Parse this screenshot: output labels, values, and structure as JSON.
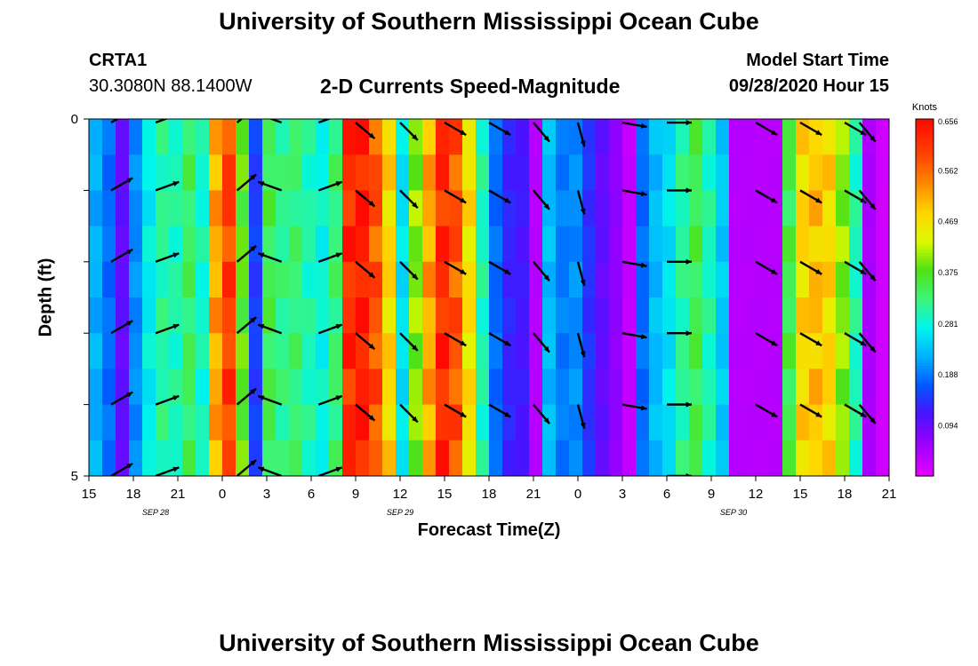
{
  "page": {
    "title_top": "University of Southern Mississippi Ocean Cube",
    "title_bottom": "University of Southern Mississippi Ocean Cube",
    "station_id": "CRTA1",
    "station_coords": "30.3080N 88.1400W",
    "plot_title": "2-D Currents Speed-Magnitude",
    "model_start_label": "Model Start Time",
    "model_start_value": "09/28/2020 Hour 15"
  },
  "chart_data": {
    "type": "heatmap",
    "title": "2-D Currents Speed-Magnitude",
    "xlabel": "Forecast Time(Z)",
    "ylabel": "Depth (ft)",
    "x_tick_labels": [
      "15",
      "18",
      "21",
      "0",
      "3",
      "6",
      "9",
      "12",
      "15",
      "18",
      "21",
      "0",
      "3",
      "6",
      "9",
      "12",
      "15",
      "18",
      "21"
    ],
    "x_range_hours": [
      0,
      54
    ],
    "date_labels": [
      {
        "text": "SEP 28",
        "hour": 4.5
      },
      {
        "text": "SEP 29",
        "hour": 21
      },
      {
        "text": "SEP 30",
        "hour": 43.5
      }
    ],
    "y_tick_labels": [
      "0",
      "5"
    ],
    "ylim_ft": [
      0,
      5
    ],
    "colorbar": {
      "unit": "Knots",
      "ticks": [
        "0.656",
        "0.562",
        "0.469",
        "0.375",
        "0.281",
        "0.188",
        "0.094"
      ],
      "range": [
        0,
        0.656
      ]
    },
    "columns_speed_knots": [
      0.22,
      0.18,
      0.1,
      0.2,
      0.27,
      0.31,
      0.3,
      0.34,
      0.29,
      0.52,
      0.6,
      0.38,
      0.15,
      0.35,
      0.32,
      0.33,
      0.3,
      0.28,
      0.33,
      0.62,
      0.64,
      0.58,
      0.48,
      0.26,
      0.4,
      0.52,
      0.62,
      0.58,
      0.47,
      0.3,
      0.18,
      0.13,
      0.12,
      0.04,
      0.23,
      0.19,
      0.2,
      0.14,
      0.1,
      0.07,
      0.03,
      0.18,
      0.23,
      0.26,
      0.31,
      0.35,
      0.3,
      0.24,
      0.04,
      0.04,
      0.04,
      0.04,
      0.35,
      0.48,
      0.5,
      0.48,
      0.4,
      0.3,
      0.05,
      0.02,
      0.08
    ],
    "columns_hours": [
      0,
      0.9,
      1.8,
      2.7,
      3.6,
      4.5,
      5.4,
      6.3,
      7.2,
      8.1,
      9.0,
      9.9,
      10.8,
      11.7,
      12.6,
      13.5,
      14.4,
      15.3,
      16.2,
      17.1,
      18.0,
      18.9,
      19.8,
      20.7,
      21.6,
      22.5,
      23.4,
      24.3,
      25.2,
      26.1,
      27.0,
      27.9,
      28.8,
      29.7,
      30.6,
      31.5,
      32.4,
      33.3,
      34.2,
      35.1,
      36.0,
      36.9,
      37.8,
      38.7,
      39.6,
      40.5,
      41.4,
      42.3,
      43.2,
      44.1,
      45.0,
      45.9,
      46.8,
      47.7,
      48.6,
      49.5,
      50.4,
      51.3,
      52.2,
      53.1,
      54.0
    ],
    "depth_rows_ft": [
      0.25,
      0.75,
      1.25,
      1.75,
      2.25,
      2.75,
      3.25,
      3.75,
      4.25,
      4.75
    ],
    "vector_depths_ft": [
      0.05,
      1.0,
      2.0,
      3.0,
      4.0,
      5.0
    ],
    "vector_hours": [
      1.5,
      4.5,
      10,
      13,
      15.5,
      18,
      21,
      24,
      27,
      30,
      33,
      36,
      39,
      45,
      48,
      51,
      52,
      54
    ],
    "vector_angles_deg": [
      -30,
      -20,
      -40,
      -160,
      -20,
      40,
      45,
      30,
      30,
      50,
      75,
      10,
      0,
      30,
      30,
      30,
      50,
      5
    ]
  }
}
